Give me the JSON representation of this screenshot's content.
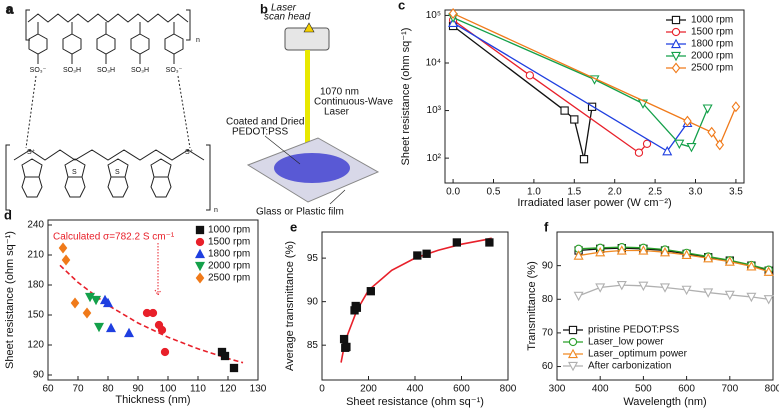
{
  "diagram_a": {
    "label": "a",
    "groups": [
      "SO₃⁻",
      "SO₃H",
      "SO₃H",
      "SO₃H",
      "SO₃⁻"
    ],
    "repeat_top": "n",
    "sulfur": [
      "S⁺",
      "S",
      "S",
      "S⁺"
    ],
    "repeat_bottom": "n"
  },
  "diagram_b": {
    "label": "b",
    "laser_head": [
      "Laser",
      "scan head"
    ],
    "laser": [
      "1070 nm",
      "Continuous-Wave",
      "Laser"
    ],
    "film": [
      "Coated and Dried",
      "PEDOT:PSS"
    ],
    "substrate": "Glass or Plastic film"
  },
  "chart_data": [
    {
      "type": "line",
      "label": "c",
      "ylabel": "Sheet resistance (ohm sq⁻¹)",
      "xlabel": "Irradiated laser power (W cm⁻²)",
      "log_y": true,
      "legend": "upper right",
      "open_markers": true,
      "xlim": [
        -0.1,
        3.6
      ],
      "ylim": [
        30,
        130000
      ],
      "xticks": [
        {
          "value": 0,
          "label": "0.0"
        },
        {
          "value": 0.5,
          "label": "0.5"
        },
        {
          "value": 1,
          "label": "1.0"
        },
        {
          "value": 1.5,
          "label": "1.5"
        },
        {
          "value": 2,
          "label": "2.0"
        },
        {
          "value": 2.5,
          "label": "2.5"
        },
        {
          "value": 3,
          "label": "3.0"
        },
        {
          "value": 3.5,
          "label": "3.5"
        }
      ],
      "yticks": [
        {
          "value": 100,
          "label": "10²"
        },
        {
          "value": 1000,
          "label": "10³"
        },
        {
          "value": 10000,
          "label": "10⁴"
        },
        {
          "value": 100000,
          "label": "10⁵"
        }
      ],
      "series": [
        {
          "name": "1000 rpm",
          "color": "#111111",
          "marker": "square",
          "x": [
            0,
            1.38,
            1.5,
            1.62,
            1.72
          ],
          "values": [
            60000,
            1000,
            650,
            95,
            1200
          ]
        },
        {
          "name": "1500 rpm",
          "color": "#e8202a",
          "marker": "circle",
          "x": [
            0,
            0.95,
            2.3,
            2.4
          ],
          "values": [
            80000,
            5500,
            130,
            200
          ]
        },
        {
          "name": "1800 rpm",
          "color": "#1f3fe0",
          "marker": "triangle-up",
          "x": [
            0,
            2.65,
            2.9
          ],
          "values": [
            70000,
            140,
            550
          ]
        },
        {
          "name": "2000 rpm",
          "color": "#14a04a",
          "marker": "triangle-down",
          "x": [
            0,
            1.75,
            2.35,
            2.8,
            2.95,
            3.15
          ],
          "values": [
            90000,
            4500,
            1400,
            200,
            170,
            1100
          ]
        },
        {
          "name": "2500 rpm",
          "color": "#f07a1a",
          "marker": "diamond",
          "x": [
            0,
            2.9,
            3.2,
            3.3,
            3.5
          ],
          "values": [
            110000,
            600,
            350,
            190,
            1200
          ]
        }
      ]
    },
    {
      "type": "scatter",
      "label": "d",
      "ylabel": "Sheet resistance (ohm sq⁻¹)",
      "xlabel": "Thickness (nm)",
      "legend": "upper right",
      "annotation": "Calculated σ=782.2 S cm⁻¹",
      "xlim": [
        60,
        130
      ],
      "ylim": [
        85,
        245
      ],
      "xticks": [
        60,
        70,
        80,
        90,
        100,
        110,
        120,
        130
      ],
      "yticks": [
        90,
        120,
        150,
        180,
        210,
        240
      ],
      "series": [
        {
          "name": "1000 rpm",
          "color": "#111111",
          "marker": "square",
          "x": [
            118,
            119,
            122
          ],
          "values": [
            113,
            109,
            97
          ]
        },
        {
          "name": "1500 rpm",
          "color": "#e8202a",
          "marker": "circle",
          "x": [
            93,
            95,
            97,
            98,
            99
          ],
          "values": [
            152,
            152,
            140,
            135,
            113
          ]
        },
        {
          "name": "1800 rpm",
          "color": "#1f3fe0",
          "marker": "triangle-up",
          "x": [
            79,
            80,
            81,
            87
          ],
          "values": [
            165,
            162,
            137,
            132
          ]
        },
        {
          "name": "2000 rpm",
          "color": "#14a04a",
          "marker": "triangle-down",
          "x": [
            74,
            76,
            77
          ],
          "values": [
            168,
            165,
            138
          ]
        },
        {
          "name": "2500 rpm",
          "color": "#f07a1a",
          "marker": "diamond",
          "x": [
            65,
            66,
            69,
            73
          ],
          "values": [
            217,
            205,
            162,
            152
          ]
        }
      ],
      "fit": {
        "color": "#e8202a",
        "dashed": true,
        "x": [
          64,
          70,
          80,
          90,
          100,
          110,
          120,
          125
        ],
        "values": [
          199.7,
          182.6,
          159.8,
          142.0,
          127.8,
          116.2,
          106.5,
          102.3
        ]
      }
    },
    {
      "type": "scatter",
      "label": "e",
      "ylabel": "Average transmittance (%)",
      "xlabel": "Sheet resistance (ohm sq⁻¹)",
      "color": "#111111",
      "marker": "square",
      "xlim": [
        0,
        800
      ],
      "ylim": [
        81,
        98
      ],
      "xticks": [
        0,
        200,
        400,
        600,
        800
      ],
      "yticks": [
        85,
        90,
        95
      ],
      "x": [
        95,
        100,
        105,
        140,
        145,
        150,
        210,
        410,
        450,
        580,
        720
      ],
      "values": [
        85.7,
        84.7,
        84.8,
        89.0,
        89.5,
        89.3,
        91.2,
        95.3,
        95.5,
        96.8,
        96.8
      ],
      "fit": {
        "color": "#e8202a",
        "dashed": false,
        "x": [
          82,
          100,
          150,
          200,
          300,
          400,
          500,
          600,
          700,
          730
        ],
        "values": [
          83,
          85.5,
          89,
          91.3,
          93.6,
          95,
          95.9,
          96.6,
          97.1,
          97.3
        ]
      }
    },
    {
      "type": "line",
      "label": "f",
      "ylabel": "Transmittance (%)",
      "xlabel": "Wavelength (nm)",
      "legend": "lower left",
      "open_markers": true,
      "xlim": [
        300,
        800
      ],
      "ylim": [
        56,
        100
      ],
      "xticks": [
        300,
        400,
        500,
        600,
        700,
        800
      ],
      "yticks": [
        60,
        70,
        80,
        90
      ],
      "x": [
        350,
        400,
        450,
        500,
        550,
        600,
        650,
        700,
        750,
        790
      ],
      "series": [
        {
          "name": "pristine PEDOT:PSS",
          "color": "#111111",
          "marker": "square",
          "values": [
            94.5,
            95,
            95.2,
            95,
            94.5,
            93.5,
            92.5,
            91.5,
            90,
            88.5
          ]
        },
        {
          "name": "Laser_low power",
          "color": "#2aa02a",
          "marker": "circle",
          "values": [
            95,
            95.3,
            95.5,
            95.3,
            94.8,
            93.8,
            92.7,
            91.6,
            90.2,
            88.8
          ]
        },
        {
          "name": "Laser_optimum power",
          "color": "#f08a24",
          "marker": "triangle-up",
          "values": [
            93,
            94,
            94.5,
            94.5,
            94,
            93.2,
            92.2,
            91.2,
            89.8,
            88.2
          ]
        },
        {
          "name": "After carbonization",
          "color": "#b0b0b0",
          "marker": "triangle-down",
          "values": [
            81,
            83.5,
            84.2,
            84,
            83.5,
            82.8,
            82,
            81.3,
            80.7,
            80
          ]
        }
      ]
    }
  ]
}
